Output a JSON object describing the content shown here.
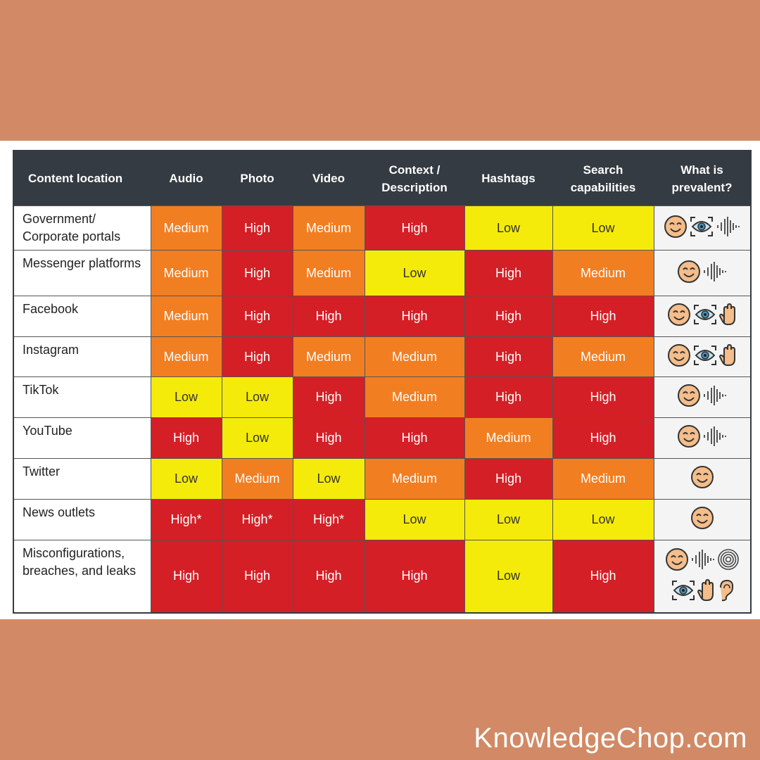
{
  "headers": [
    "Content location",
    "Audio",
    "Photo",
    "Video",
    "Context / Description",
    "Hashtags",
    "Search capabilities",
    "What is prevalent?"
  ],
  "rows": [
    {
      "location": "Government/ Corporate portals",
      "values": [
        "Medium",
        "High",
        "Medium",
        "High",
        "Low",
        "Low"
      ],
      "icons": [
        [
          "face-icon",
          "eye-icon",
          "voice-icon"
        ]
      ]
    },
    {
      "location": "Messenger platforms",
      "values": [
        "Medium",
        "High",
        "Medium",
        "Low",
        "High",
        "Medium"
      ],
      "icons": [
        [
          "face-icon",
          "voice-icon"
        ]
      ]
    },
    {
      "location": "Facebook",
      "values": [
        "Medium",
        "High",
        "High",
        "High",
        "High",
        "High"
      ],
      "icons": [
        [
          "face-icon",
          "eye-icon",
          "hand-icon"
        ]
      ]
    },
    {
      "location": "Instagram",
      "values": [
        "Medium",
        "High",
        "Medium",
        "Medium",
        "High",
        "Medium"
      ],
      "icons": [
        [
          "face-icon",
          "eye-icon",
          "hand-icon"
        ]
      ]
    },
    {
      "location": "TikTok",
      "values": [
        "Low",
        "Low",
        "High",
        "Medium",
        "High",
        "High"
      ],
      "icons": [
        [
          "face-icon",
          "voice-icon"
        ]
      ]
    },
    {
      "location": "YouTube",
      "values": [
        "High",
        "Low",
        "High",
        "High",
        "Medium",
        "High"
      ],
      "icons": [
        [
          "face-icon",
          "voice-icon"
        ]
      ]
    },
    {
      "location": "Twitter",
      "values": [
        "Low",
        "Medium",
        "Low",
        "Medium",
        "High",
        "Medium"
      ],
      "icons": [
        [
          "face-icon"
        ]
      ]
    },
    {
      "location": "News outlets",
      "values": [
        "High*",
        "High*",
        "High*",
        "Low",
        "Low",
        "Low"
      ],
      "icons": [
        [
          "face-icon"
        ]
      ]
    },
    {
      "location": "Misconfigurations, breaches, and leaks",
      "values": [
        "High",
        "High",
        "High",
        "High",
        "Low",
        "High"
      ],
      "icons": [
        [
          "face-icon",
          "voice-icon",
          "fingerprint-icon"
        ],
        [
          "eye-icon",
          "hand-icon",
          "ear-icon"
        ]
      ]
    }
  ],
  "colors": {
    "High": "#D41F26",
    "Medium": "#F27E22",
    "Low": "#F5EB0A",
    "header": "#353B42",
    "background": "#D18A65"
  },
  "footer": "KnowledgeChop.com"
}
